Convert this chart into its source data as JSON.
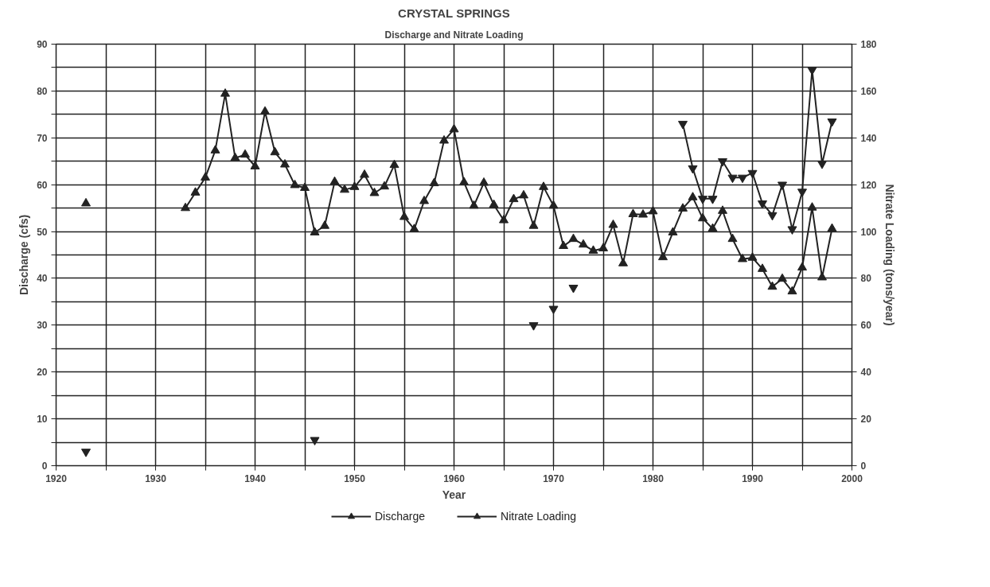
{
  "chart_data": {
    "type": "line",
    "title": "CRYSTAL SPRINGS",
    "subtitle": "Discharge and Nitrate Loading",
    "xlabel": "Year",
    "ylabel": "Discharge (cfs)",
    "y2label": "Nitrate Loading (tons/year)",
    "x": [
      1923,
      1924,
      1925,
      1926,
      1927,
      1928,
      1929,
      1930,
      1931,
      1932,
      1933,
      1934,
      1935,
      1936,
      1937,
      1938,
      1939,
      1940,
      1941,
      1942,
      1943,
      1944,
      1945,
      1946,
      1947,
      1948,
      1949,
      1950,
      1951,
      1952,
      1953,
      1954,
      1955,
      1956,
      1957,
      1958,
      1959,
      1960,
      1961,
      1962,
      1963,
      1964,
      1965,
      1966,
      1967,
      1968,
      1969,
      1970,
      1971,
      1972,
      1973,
      1974,
      1975,
      1976,
      1977,
      1978,
      1979,
      1980,
      1981,
      1982,
      1983,
      1984,
      1985,
      1986,
      1987,
      1988,
      1989,
      1990,
      1991,
      1992,
      1993,
      1994,
      1995,
      1996,
      1997,
      1998
    ],
    "series": [
      {
        "name": "Discharge",
        "color": "#222222",
        "marker": "triangle",
        "values": [
          56,
          null,
          null,
          null,
          null,
          null,
          null,
          null,
          null,
          null,
          55,
          58.3,
          61.5,
          67.3,
          79.4,
          65.7,
          66.4,
          63.9,
          75.6,
          66.9,
          64.3,
          59.9,
          59.3,
          49.8,
          51.2,
          60.6,
          58.9,
          59.5,
          62.1,
          58.2,
          59.6,
          64.2,
          53.1,
          50.5,
          56.5,
          60.3,
          69.4,
          71.8,
          60.5,
          55.5,
          60.4,
          55.7,
          52.4,
          56.9,
          57.7,
          51.2,
          59.5,
          55.5,
          46.9,
          48.4,
          47.2,
          45.9,
          46.4,
          51.4,
          43.2,
          53.7,
          53.6,
          54.3,
          44.5,
          49.8,
          54.9,
          57.3,
          52.8,
          50.6,
          54.4,
          48.4,
          44.1,
          44.4,
          42,
          38.2,
          39.9,
          37.2,
          42.3,
          55.1,
          40.2,
          50.6
        ]
      },
      {
        "name": "Nitrate Loading",
        "color": "#222222",
        "marker": "triangle",
        "axis": "y2",
        "values": [
          6,
          null,
          null,
          null,
          null,
          null,
          null,
          null,
          null,
          null,
          null,
          null,
          null,
          null,
          null,
          null,
          null,
          null,
          null,
          null,
          null,
          null,
          null,
          11,
          null,
          null,
          null,
          null,
          null,
          null,
          null,
          null,
          null,
          null,
          null,
          null,
          null,
          null,
          null,
          null,
          null,
          null,
          null,
          null,
          null,
          60,
          null,
          67,
          null,
          76,
          null,
          null,
          null,
          null,
          null,
          null,
          null,
          null,
          null,
          null,
          146,
          127,
          114,
          114,
          130,
          123,
          123,
          125,
          112,
          107,
          120,
          101,
          117,
          169,
          129,
          147
        ]
      }
    ],
    "xlim": [
      1920,
      2000
    ],
    "xticks": [
      1920,
      {
        "value": 1925,
        "label": null
      },
      1930,
      {
        "value": 1935,
        "label": null
      },
      1940,
      {
        "value": 1945,
        "label": null
      },
      1950,
      {
        "value": 1955,
        "label": null
      },
      1960,
      {
        "value": 1965,
        "label": null
      },
      1970,
      {
        "value": 1975,
        "label": null
      },
      1980,
      {
        "value": 1985,
        "label": null
      },
      1990,
      {
        "value": 1995,
        "label": null
      },
      2000
    ],
    "ylim": [
      0,
      90
    ],
    "yticks": [
      0,
      {
        "value": 5,
        "label": null
      },
      10,
      {
        "value": 15,
        "label": null
      },
      20,
      {
        "value": 25,
        "label": null
      },
      30,
      {
        "value": 35,
        "label": null
      },
      40,
      {
        "value": 45,
        "label": null
      },
      50,
      {
        "value": 55,
        "label": null
      },
      60,
      {
        "value": 65,
        "label": null
      },
      70,
      {
        "value": 75,
        "label": null
      },
      80,
      {
        "value": 85,
        "label": null
      },
      90
    ],
    "y2lim": [
      0,
      180
    ],
    "y2ticks": [
      0,
      20,
      40,
      60,
      80,
      100,
      120,
      140,
      160,
      180
    ],
    "grid": true,
    "legend": "bottom",
    "line_style": "solid"
  }
}
